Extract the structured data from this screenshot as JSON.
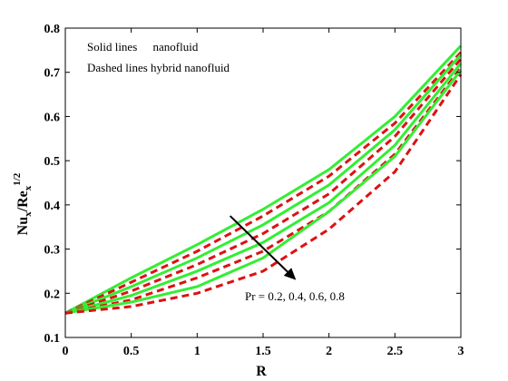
{
  "chart_data": {
    "type": "line",
    "xlabel": "R",
    "ylabel_main": "Nu",
    "ylabel_sub1": "x",
    "ylabel_mid": "/Re",
    "ylabel_sub2": "x",
    "ylabel_sup": "1/2",
    "xlim": [
      0,
      3
    ],
    "ylim": [
      0.1,
      0.8
    ],
    "xticks": [
      0,
      0.5,
      1,
      1.5,
      2,
      2.5,
      3
    ],
    "xtick_labels": [
      "0",
      "0.5",
      "1",
      "1.5",
      "2",
      "2.5",
      "3"
    ],
    "yticks": [
      0.1,
      0.2,
      0.3,
      0.4,
      0.5,
      0.6,
      0.7,
      0.8
    ],
    "ytick_labels": [
      "0.1",
      "0.2",
      "0.3",
      "0.4",
      "0.5",
      "0.6",
      "0.7",
      "0.8"
    ],
    "grid": false,
    "x": [
      0,
      0.5,
      1,
      1.5,
      2,
      2.5,
      3
    ],
    "series": [
      {
        "style": "solid",
        "color": "#33ee33",
        "values": [
          0.155,
          0.235,
          0.31,
          0.39,
          0.48,
          0.6,
          0.76
        ]
      },
      {
        "style": "dashed",
        "color": "#dd1111",
        "values": [
          0.155,
          0.225,
          0.295,
          0.375,
          0.465,
          0.585,
          0.745
        ]
      },
      {
        "style": "solid",
        "color": "#33ee33",
        "values": [
          0.155,
          0.215,
          0.28,
          0.355,
          0.445,
          0.57,
          0.74
        ]
      },
      {
        "style": "dashed",
        "color": "#dd1111",
        "values": [
          0.155,
          0.205,
          0.265,
          0.335,
          0.425,
          0.555,
          0.73
        ]
      },
      {
        "style": "solid",
        "color": "#33ee33",
        "values": [
          0.155,
          0.195,
          0.25,
          0.315,
          0.405,
          0.535,
          0.72
        ]
      },
      {
        "style": "dashed",
        "color": "#dd1111",
        "values": [
          0.155,
          0.185,
          0.235,
          0.295,
          0.385,
          0.515,
          0.71
        ]
      },
      {
        "style": "solid",
        "color": "#33ee33",
        "values": [
          0.155,
          0.18,
          0.215,
          0.28,
          0.385,
          0.51,
          0.705
        ]
      },
      {
        "style": "dashed",
        "color": "#dd1111",
        "values": [
          0.155,
          0.17,
          0.2,
          0.25,
          0.345,
          0.475,
          0.695
        ]
      }
    ],
    "annotations": {
      "legend_line1_a": "Solid lines",
      "legend_line1_b": "nanofluid",
      "legend_line2": "Dashed lines hybrid nanofluid",
      "arrow_label": "Pr = 0.2, 0.4, 0.6, 0.8",
      "arrow_from": [
        1.25,
        0.375
      ],
      "arrow_to": [
        1.75,
        0.23
      ]
    }
  }
}
